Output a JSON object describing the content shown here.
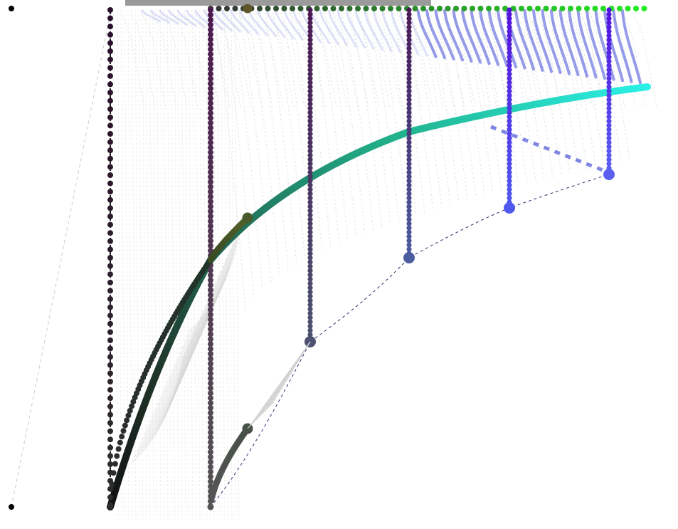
{
  "diagram": {
    "colors": {
      "background": "#ffffff",
      "top_overlay": "#9a9a9a",
      "top_gradient_start": "#000000",
      "top_gradient_end": "#22ee22",
      "right_gradient_end": "#22f2e6",
      "dark_purple": "#2b0f2b",
      "purple": "#4b1a55",
      "violet": "#5a2ad0",
      "blue": "#4f59f0",
      "gray": "#5c5c5c"
    },
    "legend": [],
    "annotations": []
  }
}
